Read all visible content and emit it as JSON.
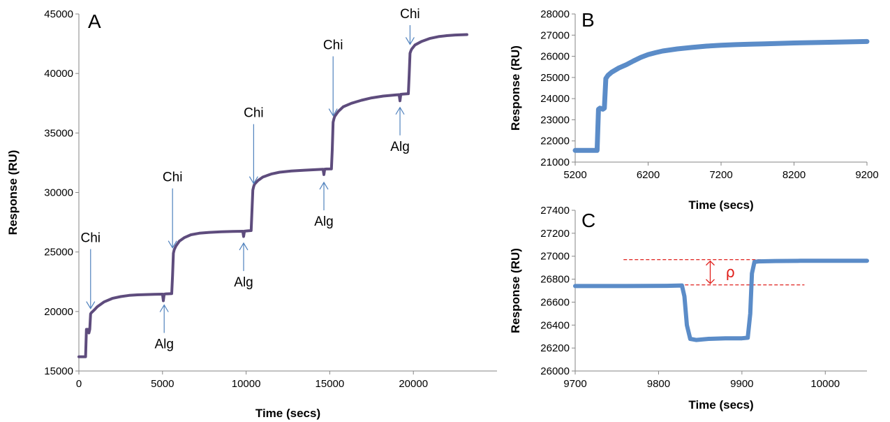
{
  "chart_data": [
    {
      "type": "line",
      "panel_label": "A",
      "xlabel": "Time (secs)",
      "ylabel": "Response (RU)",
      "xlim": [
        0,
        25000
      ],
      "ylim": [
        15000,
        45000
      ],
      "xticks": [
        0,
        5000,
        10000,
        15000,
        20000
      ],
      "yticks": [
        15000,
        20000,
        25000,
        30000,
        35000,
        40000,
        45000
      ],
      "grid": false,
      "line_color": "#5e4c7d",
      "series": [
        {
          "x": [
            0,
            400,
            450,
            550,
            600,
            650,
            700,
            750,
            900,
            1100,
            1500,
            2000,
            2500,
            3000,
            3500,
            4000,
            4500,
            5000,
            5050,
            5100,
            5150,
            5200,
            5350,
            5550,
            5600,
            5650,
            5700,
            5800,
            6000,
            6300,
            6700,
            7200,
            7800,
            8500,
            9200,
            9800,
            9850,
            9900,
            10050,
            10300,
            10350,
            10400,
            10450,
            10500,
            10700,
            11000,
            11500,
            12000,
            12700,
            13500,
            14200,
            14600,
            14650,
            14700,
            14800,
            15100,
            15150,
            15200,
            15250,
            15300,
            15500,
            15800,
            16300,
            16900,
            17500,
            18200,
            19000,
            19150,
            19200,
            19250,
            19400,
            19700,
            19750,
            19800,
            19850,
            19900,
            20100,
            20500,
            21000,
            21500,
            22000,
            22500,
            23200
          ],
          "y": [
            16200,
            16200,
            18500,
            18500,
            18200,
            18500,
            19800,
            19900,
            20100,
            20400,
            20800,
            21100,
            21250,
            21350,
            21400,
            21420,
            21440,
            21460,
            20900,
            21460,
            21470,
            21480,
            21490,
            21500,
            23000,
            24900,
            25200,
            25500,
            25900,
            26200,
            26450,
            26580,
            26650,
            26700,
            26730,
            26740,
            26300,
            26750,
            26770,
            26800,
            28500,
            30200,
            30500,
            30700,
            31000,
            31300,
            31550,
            31700,
            31800,
            31870,
            31920,
            31950,
            31500,
            31960,
            31970,
            31980,
            33600,
            35900,
            36200,
            36400,
            36800,
            37200,
            37500,
            37750,
            37950,
            38100,
            38200,
            38220,
            37700,
            38250,
            38270,
            38300,
            39900,
            41700,
            41900,
            42050,
            42400,
            42700,
            42950,
            43100,
            43180,
            43230,
            43270
          ]
        }
      ],
      "annotations": [
        {
          "text": "Chi",
          "x": 700,
          "y": 19900,
          "direction": "down"
        },
        {
          "text": "Alg",
          "x": 5100,
          "y": 20900,
          "direction": "up"
        },
        {
          "text": "Chi",
          "x": 5600,
          "y": 25000,
          "direction": "down"
        },
        {
          "text": "Alg",
          "x": 9850,
          "y": 26100,
          "direction": "up"
        },
        {
          "text": "Chi",
          "x": 10450,
          "y": 30400,
          "direction": "down"
        },
        {
          "text": "Alg",
          "x": 14650,
          "y": 31200,
          "direction": "up"
        },
        {
          "text": "Chi",
          "x": 15200,
          "y": 36100,
          "direction": "down"
        },
        {
          "text": "Alg",
          "x": 19200,
          "y": 37500,
          "direction": "up"
        },
        {
          "text": "Chi",
          "x": 19800,
          "y": 42100,
          "direction": "down"
        }
      ]
    },
    {
      "type": "line",
      "panel_label": "B",
      "xlabel": "Time (secs)",
      "ylabel": "Response (RU)",
      "xlim": [
        5200,
        9200
      ],
      "ylim": [
        21000,
        28000
      ],
      "xticks": [
        5200,
        6200,
        7200,
        8200,
        9200
      ],
      "yticks": [
        21000,
        22000,
        23000,
        24000,
        25000,
        26000,
        27000,
        28000
      ],
      "grid": false,
      "line_color": "#5b8cc8",
      "series": [
        {
          "x": [
            5200,
            5500,
            5520,
            5540,
            5580,
            5600,
            5620,
            5650,
            5700,
            5800,
            5900,
            6000,
            6100,
            6200,
            6300,
            6400,
            6600,
            6800,
            7000,
            7200,
            7400,
            7600,
            7800,
            8000,
            8200,
            8500,
            8800,
            9200
          ],
          "y": [
            21550,
            21550,
            23500,
            23550,
            23500,
            23550,
            24950,
            25100,
            25250,
            25450,
            25600,
            25780,
            25950,
            26080,
            26170,
            26250,
            26350,
            26420,
            26480,
            26520,
            26550,
            26570,
            26590,
            26610,
            26630,
            26650,
            26670,
            26700
          ]
        }
      ]
    },
    {
      "type": "line",
      "panel_label": "C",
      "xlabel": "Time (secs)",
      "ylabel": "Response (RU)",
      "xlim": [
        9700,
        10050
      ],
      "ylim": [
        26000,
        27400
      ],
      "xticks": [
        9700,
        9800,
        9900,
        10000
      ],
      "yticks": [
        26000,
        26200,
        26400,
        26600,
        26800,
        27000,
        27200,
        27400
      ],
      "grid": false,
      "line_color": "#5b8cc8",
      "series": [
        {
          "x": [
            9700,
            9760,
            9810,
            9828,
            9831,
            9834,
            9838,
            9845,
            9860,
            9880,
            9900,
            9907,
            9910,
            9912,
            9915,
            9920,
            9940,
            9970,
            10000,
            10050
          ],
          "y": [
            26740,
            26740,
            26742,
            26745,
            26650,
            26400,
            26280,
            26270,
            26280,
            26285,
            26285,
            26290,
            26500,
            26850,
            26950,
            26955,
            26958,
            26960,
            26960,
            26960
          ]
        }
      ],
      "reference_lines": [
        26750,
        26970
      ],
      "reference_color": "#e0201c",
      "delta_label": "ρ"
    }
  ]
}
